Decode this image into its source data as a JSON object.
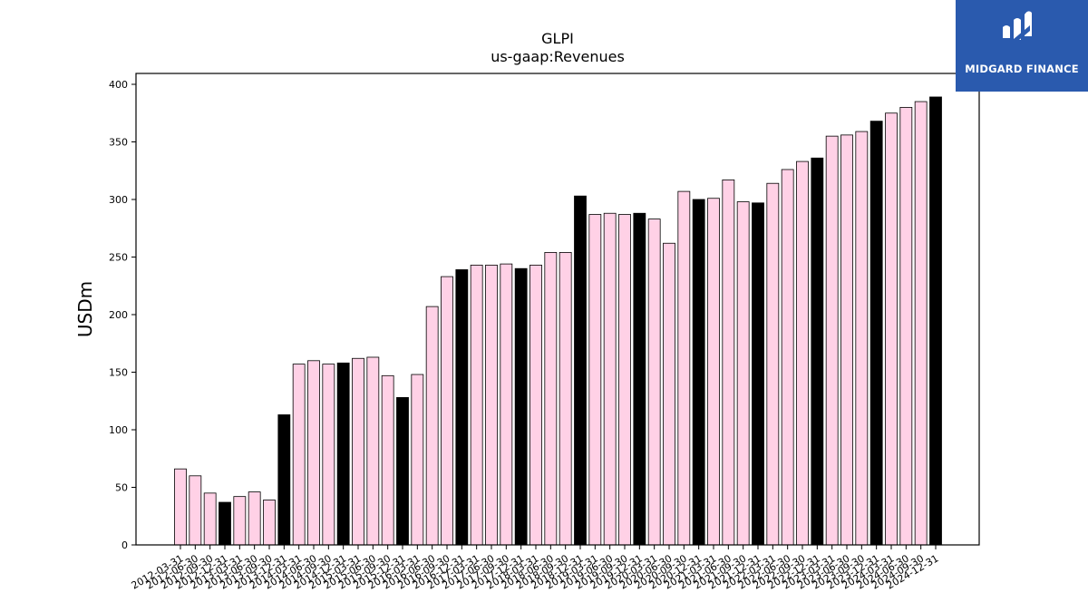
{
  "chart_data": {
    "type": "bar",
    "title": "GLPI",
    "subtitle": "us-gaap:Revenues",
    "ylabel": "USDm",
    "xlabel": "",
    "ylim": [
      0,
      410
    ],
    "yticks": [
      0,
      50,
      100,
      150,
      200,
      250,
      300,
      350,
      400
    ],
    "grid": false,
    "colors": {
      "quarter": "#ffd1e6",
      "year_end": "#000000",
      "edge": "#000000"
    },
    "categories": [
      "2012-03-31",
      "2012-06-30",
      "2012-09-30",
      "2012-12-31",
      "2013-03-31",
      "2013-06-30",
      "2013-09-30",
      "2013-12-31",
      "2014-03-31",
      "2014-06-30",
      "2014-09-30",
      "2014-12-31",
      "2015-03-31",
      "2015-06-30",
      "2015-09-30",
      "2015-12-31",
      "2016-03-31",
      "2016-06-30",
      "2016-09-30",
      "2016-12-31",
      "2017-03-31",
      "2017-06-30",
      "2017-09-30",
      "2017-12-31",
      "2018-03-31",
      "2018-06-30",
      "2018-09-30",
      "2018-12-31",
      "2019-03-31",
      "2019-06-30",
      "2019-09-30",
      "2019-12-31",
      "2020-03-31",
      "2020-06-30",
      "2020-09-30",
      "2020-12-31",
      "2021-03-31",
      "2021-06-30",
      "2021-09-30",
      "2021-12-31",
      "2022-03-31",
      "2022-06-30",
      "2022-09-30",
      "2022-12-31",
      "2023-03-31",
      "2023-06-30",
      "2023-09-30",
      "2023-12-31",
      "2024-03-31",
      "2024-06-30",
      "2024-09-30",
      "2024-12-31"
    ],
    "values": [
      66,
      60,
      45,
      37,
      42,
      46,
      39,
      113,
      157,
      160,
      157,
      158,
      162,
      163,
      147,
      128,
      148,
      207,
      233,
      239,
      243,
      243,
      244,
      240,
      243,
      254,
      254,
      303,
      287,
      288,
      287,
      288,
      283,
      262,
      307,
      300,
      301,
      317,
      298,
      297,
      314,
      326,
      333,
      336,
      355,
      356,
      359,
      368,
      375,
      380,
      385,
      389
    ],
    "year_end_flags": [
      false,
      false,
      false,
      true,
      false,
      false,
      false,
      true,
      false,
      false,
      false,
      true,
      false,
      false,
      false,
      true,
      false,
      false,
      false,
      true,
      false,
      false,
      false,
      true,
      false,
      false,
      false,
      true,
      false,
      false,
      false,
      true,
      false,
      false,
      false,
      true,
      false,
      false,
      false,
      true,
      false,
      false,
      false,
      true,
      false,
      false,
      false,
      true,
      false,
      false,
      false,
      true
    ]
  },
  "logo": {
    "text": "MIDGARD FINANCE"
  }
}
